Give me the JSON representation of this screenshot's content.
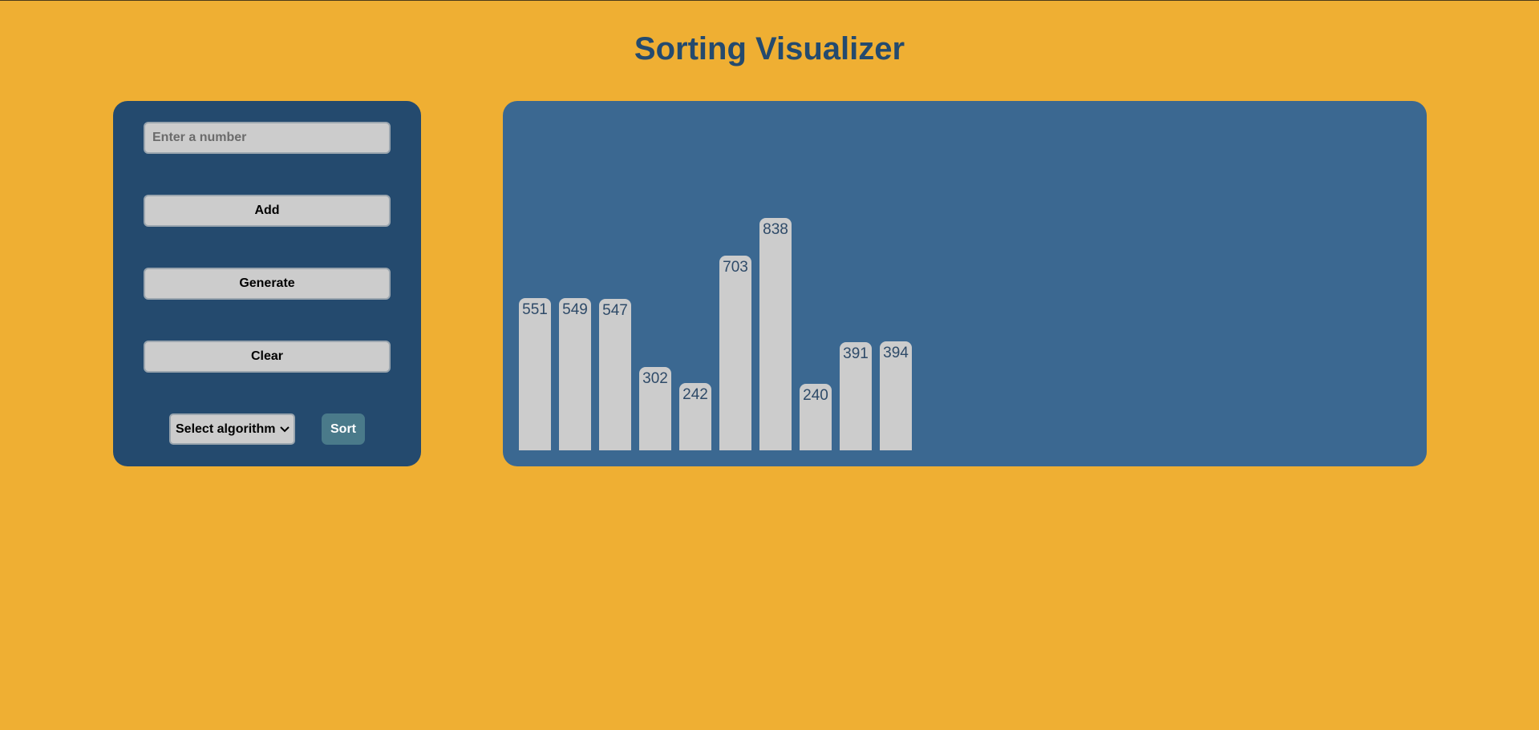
{
  "page": {
    "title": "Sorting Visualizer"
  },
  "controls": {
    "input_placeholder": "Enter a number",
    "input_value": "",
    "add_label": "Add",
    "generate_label": "Generate",
    "clear_label": "Clear",
    "algorithm_select": {
      "selected": "Select algorithm",
      "icon": "chevron-down-icon"
    },
    "sort_label": "Sort"
  },
  "colors": {
    "background": "#EFAF33",
    "title": "#244A6E",
    "control_panel": "#244A6E",
    "viz_panel": "#3B6891",
    "bar": "#CCCCCC",
    "bar_label": "#2E4A68",
    "sort_button": "#4A7A8A"
  },
  "chart_data": {
    "type": "bar",
    "values": [
      551,
      549,
      547,
      302,
      242,
      703,
      838,
      240,
      391,
      394
    ]
  }
}
